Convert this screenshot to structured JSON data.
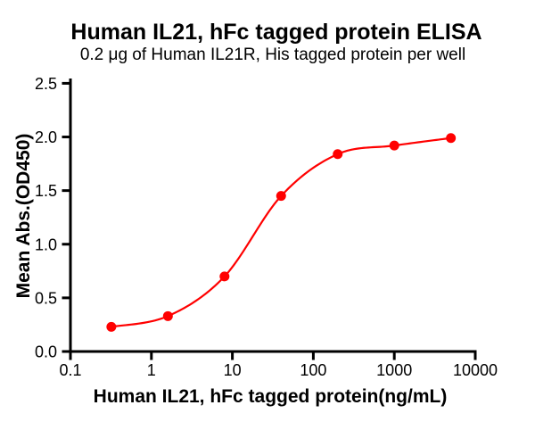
{
  "chart_data": {
    "type": "line",
    "title": "Human IL21, hFc tagged protein ELISA",
    "subtitle": "0.2 μg of Human IL21R, His tagged protein per well",
    "xlabel": "Human IL21, hFc tagged protein(ng/mL)",
    "ylabel": "Mean Abs.(OD450)",
    "x_scale": "log",
    "x": [
      0.32,
      1.6,
      8,
      40,
      200,
      1000,
      5000
    ],
    "y": [
      0.23,
      0.33,
      0.7,
      1.45,
      1.84,
      1.92,
      1.99
    ],
    "x_tick_labels": [
      "0.1",
      "1",
      "10",
      "100",
      "1000",
      "10000"
    ],
    "y_tick_labels": [
      "0.0",
      "0.5",
      "1.0",
      "1.5",
      "2.0",
      "2.5"
    ],
    "xlim": [
      0.1,
      10000
    ],
    "ylim": [
      0.0,
      2.5
    ],
    "grid": false,
    "legend": "none",
    "marker": "circle",
    "series_color": "#FF0000",
    "axis_color": "#000000",
    "background_color": "#FFFFFF"
  }
}
